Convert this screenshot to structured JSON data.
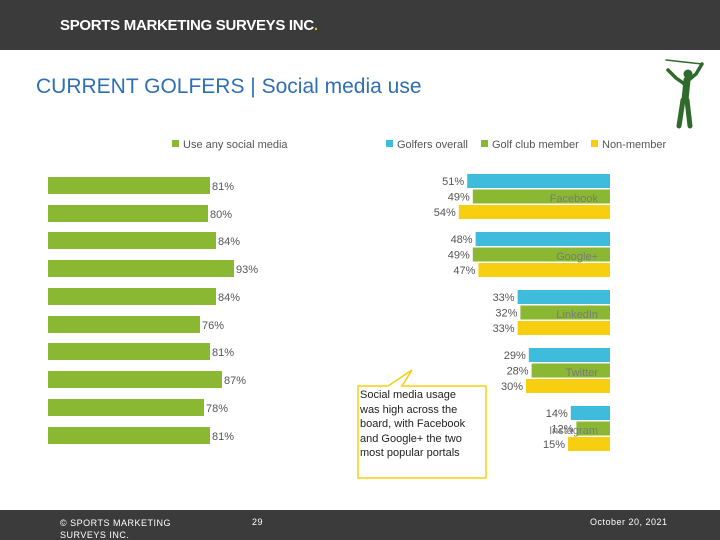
{
  "header": {
    "brand": "SPORTS MARKETING SURVEYS INC",
    "brand_dot": "."
  },
  "title": "CURRENT GOLFERS  |  Social media use",
  "legends": {
    "left": [
      {
        "label": "Use any social media",
        "color": "#8ab833"
      }
    ],
    "right": [
      {
        "label": "Golfers overall",
        "color": "#3fbcdc"
      },
      {
        "label": "Golf club member",
        "color": "#8ab833"
      },
      {
        "label": "Non-member",
        "color": "#f7cf10"
      }
    ]
  },
  "callout": {
    "text": "Social media usage was high across the board, with Facebook and Google+ the two most popular portals"
  },
  "footer": {
    "copyright": "© SPORTS MARKETING SURVEYS INC.",
    "page": "29",
    "date": "October 20, 2021"
  },
  "chart_data": [
    {
      "type": "bar",
      "orientation": "horizontal",
      "series": [
        {
          "name": "Use any social media",
          "color": "#8ab833",
          "values": [
            81,
            80,
            84,
            93,
            84,
            76,
            81,
            87,
            78,
            81
          ]
        }
      ],
      "labels": [
        "81%",
        "80%",
        "84%",
        "93%",
        "84%",
        "76%",
        "81%",
        "87%",
        "78%",
        "81%"
      ]
    },
    {
      "type": "bar",
      "orientation": "horizontal",
      "categories": [
        "Facebook",
        "Google+",
        "LinkedIn",
        "Twitter",
        "Instagram"
      ],
      "series": [
        {
          "name": "Golfers overall",
          "color": "#3fbcdc",
          "values": [
            51,
            48,
            33,
            29,
            14
          ]
        },
        {
          "name": "Golf club member",
          "color": "#8ab833",
          "values": [
            49,
            49,
            32,
            28,
            12
          ]
        },
        {
          "name": "Non-member",
          "color": "#f7cf10",
          "values": [
            54,
            47,
            33,
            30,
            15
          ]
        }
      ]
    }
  ]
}
